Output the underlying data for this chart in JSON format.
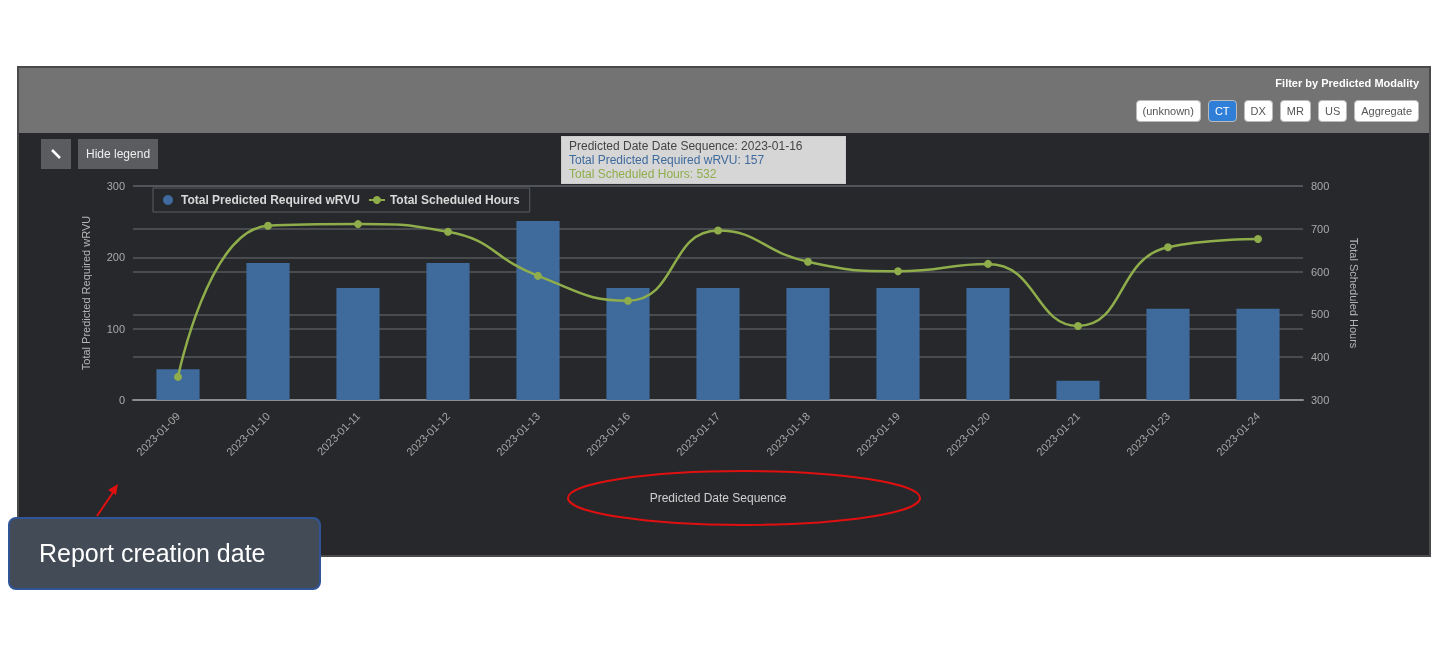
{
  "chart_data": {
    "type": "bar",
    "xlabel": "Predicted Date Sequence",
    "ylabel": "Total Predicted Required wRVU",
    "y2label": "Total Scheduled Hours",
    "categories": [
      "2023-01-09",
      "2023-01-10",
      "2023-01-11",
      "2023-01-12",
      "2023-01-13",
      "2023-01-16",
      "2023-01-17",
      "2023-01-18",
      "2023-01-19",
      "2023-01-20",
      "2023-01-21",
      "2023-01-23",
      "2023-01-24"
    ],
    "series": [
      {
        "name": "Total Predicted Required wRVU",
        "color": "#3e6a9c",
        "values": [
          43,
          192,
          157,
          192,
          251,
          157,
          157,
          157,
          157,
          157,
          27,
          128,
          128
        ]
      },
      {
        "name": "Total Scheduled Hours",
        "type": "line",
        "axis": "y2",
        "color": "#8fad4a",
        "values": [
          354,
          707,
          711,
          693,
          590,
          532,
          696,
          623,
          601,
          618,
          473,
          657,
          676
        ]
      }
    ],
    "ylim": [
      0,
      300
    ],
    "yticks": [
      0,
      100,
      200,
      300
    ],
    "y2lim": [
      300,
      800
    ],
    "y2ticks": [
      300,
      400,
      500,
      600,
      700,
      800
    ],
    "grid": "y",
    "legend": "top left",
    "marker": "circle",
    "annotations": [
      "Filter by Predicted Modality",
      "(unknown)",
      "CT",
      "DX",
      "MR",
      "US",
      "Aggregate",
      "Hide legend",
      "Predicted Date Date Sequence: 2023-01-16",
      "Total Predicted Required wRVU: 157",
      "Total Scheduled Hours: 532",
      "Report creation date"
    ]
  }
}
